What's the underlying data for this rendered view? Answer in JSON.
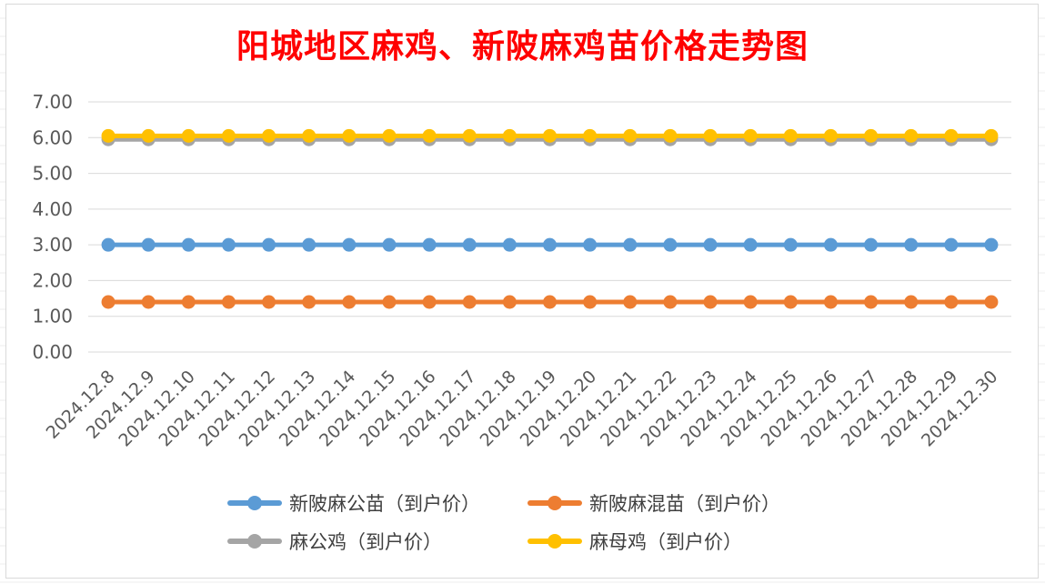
{
  "chart_data": {
    "type": "line",
    "title": "阳城地区麻鸡、新陂麻鸡苗价格走势图",
    "xlabel": "",
    "ylabel": "",
    "ylim": [
      0,
      7
    ],
    "yticks": [
      "0.00",
      "1.00",
      "2.00",
      "3.00",
      "4.00",
      "5.00",
      "6.00",
      "7.00"
    ],
    "grid": true,
    "legend_position": "bottom",
    "categories": [
      "2024.12.8",
      "2024.12.9",
      "2024.12.10",
      "2024.12.11",
      "2024.12.12",
      "2024.12.13",
      "2024.12.14",
      "2024.12.15",
      "2024.12.16",
      "2024.12.17",
      "2024.12.18",
      "2024.12.19",
      "2024.12.20",
      "2024.12.21",
      "2024.12.22",
      "2024.12.23",
      "2024.12.24",
      "2024.12.25",
      "2024.12.26",
      "2024.12.27",
      "2024.12.28",
      "2024.12.29",
      "2024.12.30"
    ],
    "series": [
      {
        "name": "新陂麻公苗（到户价）",
        "color": "#5b9bd5",
        "values": [
          3,
          3,
          3,
          3,
          3,
          3,
          3,
          3,
          3,
          3,
          3,
          3,
          3,
          3,
          3,
          3,
          3,
          3,
          3,
          3,
          3,
          3,
          3
        ]
      },
      {
        "name": "新陂麻混苗（到户价）",
        "color": "#ed7d31",
        "values": [
          1.4,
          1.4,
          1.4,
          1.4,
          1.4,
          1.4,
          1.4,
          1.4,
          1.4,
          1.4,
          1.4,
          1.4,
          1.4,
          1.4,
          1.4,
          1.4,
          1.4,
          1.4,
          1.4,
          1.4,
          1.4,
          1.4,
          1.4
        ]
      },
      {
        "name": "麻公鸡（到户价）",
        "color": "#a5a5a5",
        "values": [
          5.95,
          5.95,
          5.95,
          5.95,
          5.95,
          5.95,
          5.95,
          5.95,
          5.95,
          5.95,
          5.95,
          5.95,
          5.95,
          5.95,
          5.95,
          5.95,
          5.95,
          5.95,
          5.95,
          5.95,
          5.95,
          5.95,
          5.95
        ]
      },
      {
        "name": "麻母鸡（到户价）",
        "color": "#ffc000",
        "values": [
          6.05,
          6.05,
          6.05,
          6.05,
          6.05,
          6.05,
          6.05,
          6.05,
          6.05,
          6.05,
          6.05,
          6.05,
          6.05,
          6.05,
          6.05,
          6.05,
          6.05,
          6.05,
          6.05,
          6.05,
          6.05,
          6.05,
          6.05
        ]
      }
    ]
  }
}
